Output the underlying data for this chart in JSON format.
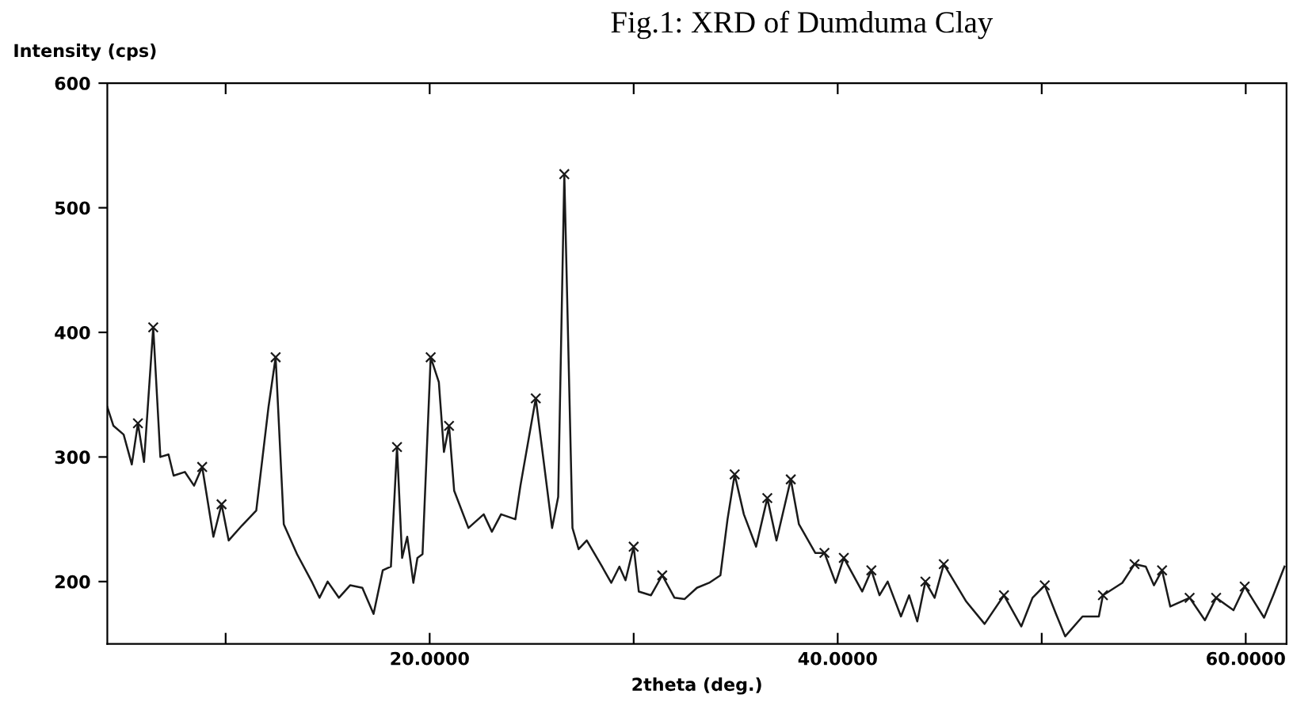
{
  "chart_data": {
    "type": "line",
    "title": "Fig.1: XRD of Dumduma Clay",
    "xlabel": "2theta (deg.)",
    "ylabel": "Intensity (cps)",
    "xlim": [
      4.2,
      62.0
    ],
    "ylim": [
      150,
      600
    ],
    "xticks": [
      {
        "value": 10,
        "label": null
      },
      {
        "value": 20,
        "label": "20.0000"
      },
      {
        "value": 30,
        "label": null
      },
      {
        "value": 40,
        "label": "40.0000"
      },
      {
        "value": 50,
        "label": null
      },
      {
        "value": 60,
        "label": "60.0000"
      }
    ],
    "yticks": [
      200,
      300,
      400,
      500,
      600
    ],
    "grid": false,
    "series": [
      {
        "color": "#1a1a1a",
        "marker": "none",
        "line_style": "solid",
        "x": [
          4.2,
          4.5,
          5.0,
          5.4,
          5.7,
          6.0,
          6.45,
          6.8,
          7.2,
          7.45,
          8.0,
          8.45,
          8.85,
          9.4,
          9.8,
          10.15,
          10.8,
          11.5,
          12.1,
          12.45,
          12.85,
          13.5,
          14.25,
          14.6,
          15.0,
          15.55,
          16.1,
          16.7,
          17.25,
          17.7,
          18.1,
          18.4,
          18.65,
          18.9,
          19.2,
          19.4,
          19.65,
          20.05,
          20.45,
          20.7,
          20.95,
          21.2,
          21.9,
          22.65,
          23.05,
          23.5,
          24.2,
          24.45,
          25.2,
          26.0,
          26.3,
          26.6,
          27.0,
          27.3,
          27.7,
          28.45,
          28.9,
          29.3,
          29.6,
          30.0,
          30.25,
          30.85,
          31.4,
          32.0,
          32.5,
          33.1,
          33.7,
          34.25,
          34.6,
          34.95,
          35.4,
          36.0,
          36.55,
          37.0,
          37.7,
          38.1,
          38.9,
          39.35,
          39.9,
          40.3,
          41.2,
          41.65,
          42.05,
          42.45,
          43.1,
          43.5,
          43.9,
          44.3,
          44.75,
          45.2,
          46.3,
          47.2,
          48.15,
          49.0,
          49.55,
          50.15,
          50.7,
          51.15,
          52.0,
          52.8,
          53.0,
          53.95,
          54.55,
          55.1,
          55.5,
          55.9,
          56.3,
          57.25,
          58.0,
          58.55,
          59.4,
          59.95,
          60.9,
          61.35,
          61.9
        ],
        "values": [
          340,
          325,
          318,
          294,
          327,
          296,
          404,
          300,
          302,
          285,
          288,
          277,
          292,
          236,
          262,
          233,
          245,
          257,
          340,
          380,
          246,
          222,
          199,
          187,
          200,
          187,
          197,
          195,
          174,
          209,
          212,
          308,
          219,
          236,
          199,
          219,
          222,
          380,
          360,
          304,
          325,
          273,
          243,
          254,
          240,
          254,
          250,
          277,
          347,
          243,
          268,
          527,
          243,
          226,
          233,
          212,
          199,
          212,
          201,
          228,
          192,
          189,
          205,
          187,
          186,
          195,
          199,
          205,
          250,
          286,
          254,
          228,
          267,
          233,
          282,
          246,
          223,
          223,
          199,
          219,
          192,
          209,
          189,
          200,
          172,
          189,
          168,
          200,
          187,
          214,
          184,
          166,
          189,
          164,
          187,
          197,
          174,
          156,
          172,
          172,
          189,
          199,
          214,
          212,
          197,
          209,
          180,
          187,
          169,
          187,
          177,
          196,
          171,
          189,
          212
        ]
      },
      {
        "type": "scatter",
        "color": "#1a1a1a",
        "marker": "cross",
        "x": [
          5.7,
          6.45,
          8.85,
          9.8,
          12.45,
          18.4,
          20.05,
          20.95,
          25.2,
          26.6,
          30.0,
          31.4,
          34.95,
          36.55,
          37.7,
          39.35,
          40.3,
          41.65,
          44.3,
          45.2,
          48.15,
          50.15,
          53.0,
          54.55,
          55.9,
          57.25,
          58.55,
          59.95
        ],
        "values": [
          327,
          404,
          292,
          262,
          380,
          308,
          380,
          325,
          347,
          527,
          228,
          205,
          286,
          267,
          282,
          223,
          219,
          209,
          200,
          214,
          189,
          197,
          189,
          214,
          209,
          187,
          187,
          196
        ]
      }
    ]
  }
}
